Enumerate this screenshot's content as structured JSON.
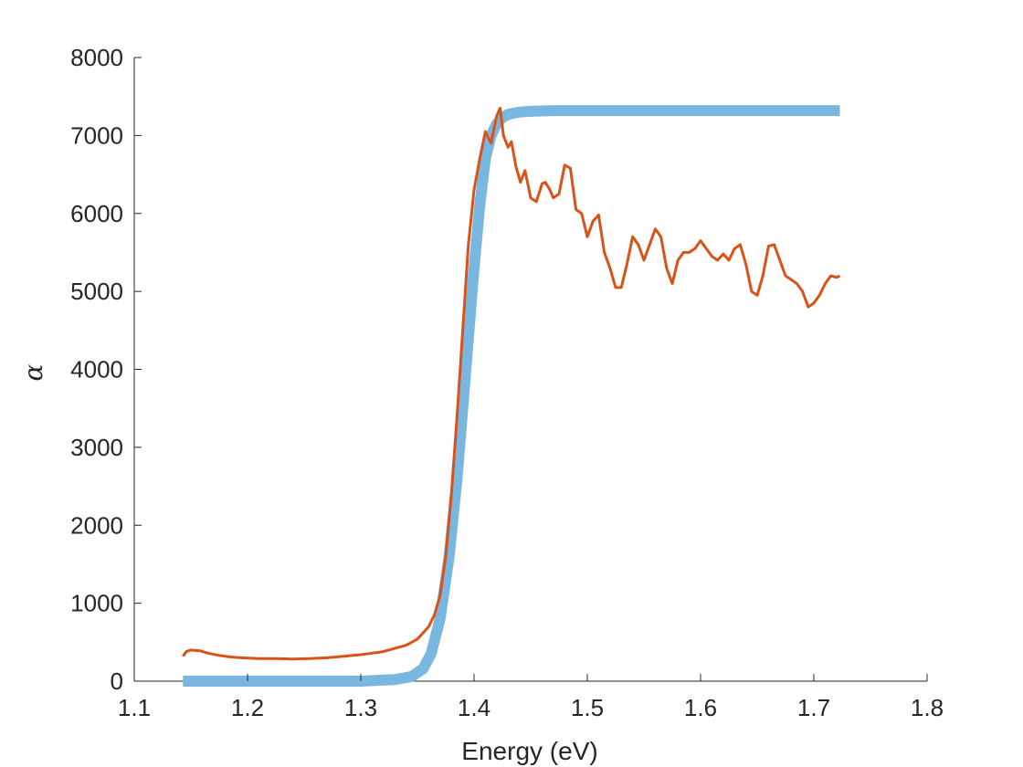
{
  "chart_data": {
    "type": "line",
    "title": "",
    "xlabel": "Energy (eV)",
    "ylabel": "α",
    "xlim": [
      1.1,
      1.8
    ],
    "ylim": [
      0,
      8000
    ],
    "xticks": [
      "1.1",
      "1.2",
      "1.3",
      "1.4",
      "1.5",
      "1.6",
      "1.7",
      "1.8"
    ],
    "yticks": [
      "0",
      "1000",
      "2000",
      "3000",
      "4000",
      "5000",
      "6000",
      "7000",
      "8000"
    ],
    "grid": false,
    "legend": "none",
    "series": [
      {
        "color": "#7ab7e0",
        "style": "thick",
        "x": [
          1.143,
          1.2,
          1.25,
          1.3,
          1.33,
          1.345,
          1.355,
          1.362,
          1.37,
          1.378,
          1.385,
          1.39,
          1.395,
          1.4,
          1.405,
          1.41,
          1.415,
          1.42,
          1.425,
          1.43,
          1.44,
          1.45,
          1.47,
          1.5,
          1.6,
          1.723
        ],
        "y": [
          0,
          0,
          0,
          0,
          20,
          60,
          160,
          350,
          800,
          1600,
          2600,
          3500,
          4400,
          5300,
          6100,
          6700,
          7000,
          7150,
          7230,
          7270,
          7300,
          7310,
          7320,
          7320,
          7320,
          7320
        ]
      },
      {
        "color": "#d95319",
        "style": "thin",
        "x": [
          1.143,
          1.146,
          1.15,
          1.158,
          1.165,
          1.175,
          1.185,
          1.195,
          1.21,
          1.225,
          1.24,
          1.255,
          1.27,
          1.285,
          1.3,
          1.31,
          1.32,
          1.33,
          1.34,
          1.35,
          1.355,
          1.36,
          1.365,
          1.37,
          1.375,
          1.38,
          1.385,
          1.39,
          1.395,
          1.4,
          1.405,
          1.41,
          1.415,
          1.42,
          1.423,
          1.426,
          1.43,
          1.433,
          1.437,
          1.441,
          1.445,
          1.45,
          1.455,
          1.46,
          1.463,
          1.467,
          1.47,
          1.475,
          1.48,
          1.485,
          1.49,
          1.495,
          1.5,
          1.505,
          1.51,
          1.515,
          1.52,
          1.525,
          1.53,
          1.535,
          1.54,
          1.545,
          1.55,
          1.555,
          1.56,
          1.565,
          1.57,
          1.575,
          1.58,
          1.585,
          1.59,
          1.595,
          1.6,
          1.605,
          1.61,
          1.615,
          1.62,
          1.625,
          1.63,
          1.635,
          1.64,
          1.645,
          1.65,
          1.655,
          1.66,
          1.665,
          1.67,
          1.675,
          1.68,
          1.685,
          1.69,
          1.695,
          1.7,
          1.705,
          1.71,
          1.715,
          1.72,
          1.723
        ],
        "y": [
          320,
          380,
          400,
          390,
          360,
          330,
          310,
          300,
          290,
          290,
          285,
          290,
          300,
          320,
          340,
          360,
          380,
          420,
          460,
          540,
          620,
          700,
          850,
          1100,
          1600,
          2400,
          3400,
          4500,
          5600,
          6300,
          6700,
          7050,
          6900,
          7250,
          7350,
          7000,
          6850,
          6920,
          6600,
          6400,
          6550,
          6200,
          6150,
          6380,
          6400,
          6300,
          6200,
          6250,
          6620,
          6580,
          6050,
          6000,
          5700,
          5900,
          5980,
          5500,
          5300,
          5050,
          5050,
          5350,
          5700,
          5600,
          5400,
          5600,
          5800,
          5700,
          5300,
          5100,
          5400,
          5500,
          5500,
          5550,
          5650,
          5550,
          5450,
          5400,
          5480,
          5400,
          5550,
          5600,
          5350,
          5000,
          4950,
          5200,
          5580,
          5600,
          5400,
          5200,
          5150,
          5100,
          5000,
          4800,
          4850,
          4950,
          5100,
          5200,
          5180,
          5200
        ]
      }
    ]
  }
}
